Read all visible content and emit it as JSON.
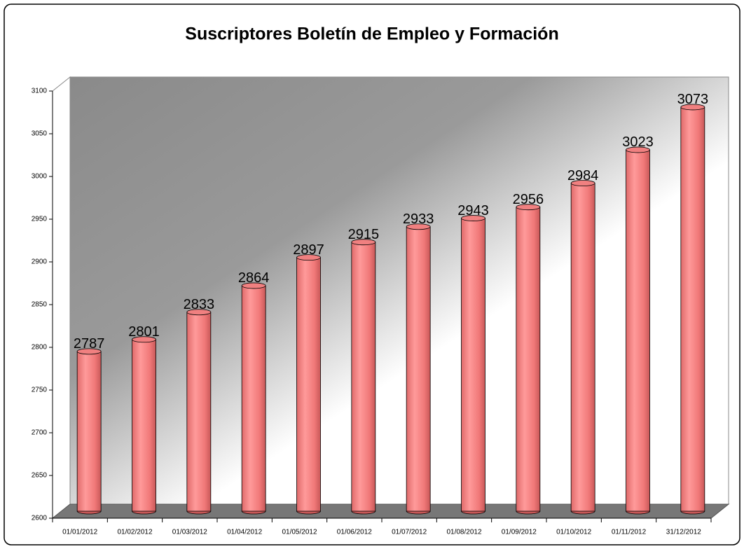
{
  "chart_data": {
    "type": "bar",
    "title": "Suscriptores Boletín de Empleo y Formación",
    "categories": [
      "01/01/2012",
      "01/02/2012",
      "01/03/2012",
      "01/04/2012",
      "01/05/2012",
      "01/06/2012",
      "01/07/2012",
      "01/08/2012",
      "01/09/2012",
      "01/10/2012",
      "01/11/2012",
      "31/12/2012"
    ],
    "values": [
      2787,
      2801,
      2833,
      2864,
      2897,
      2915,
      2933,
      2943,
      2956,
      2984,
      3023,
      3073
    ],
    "color": "#f08080",
    "ylim": [
      2600,
      3100
    ],
    "yticks": [
      2600,
      2650,
      2700,
      2750,
      2800,
      2850,
      2900,
      2950,
      3000,
      3050,
      3100
    ],
    "grid": false
  }
}
